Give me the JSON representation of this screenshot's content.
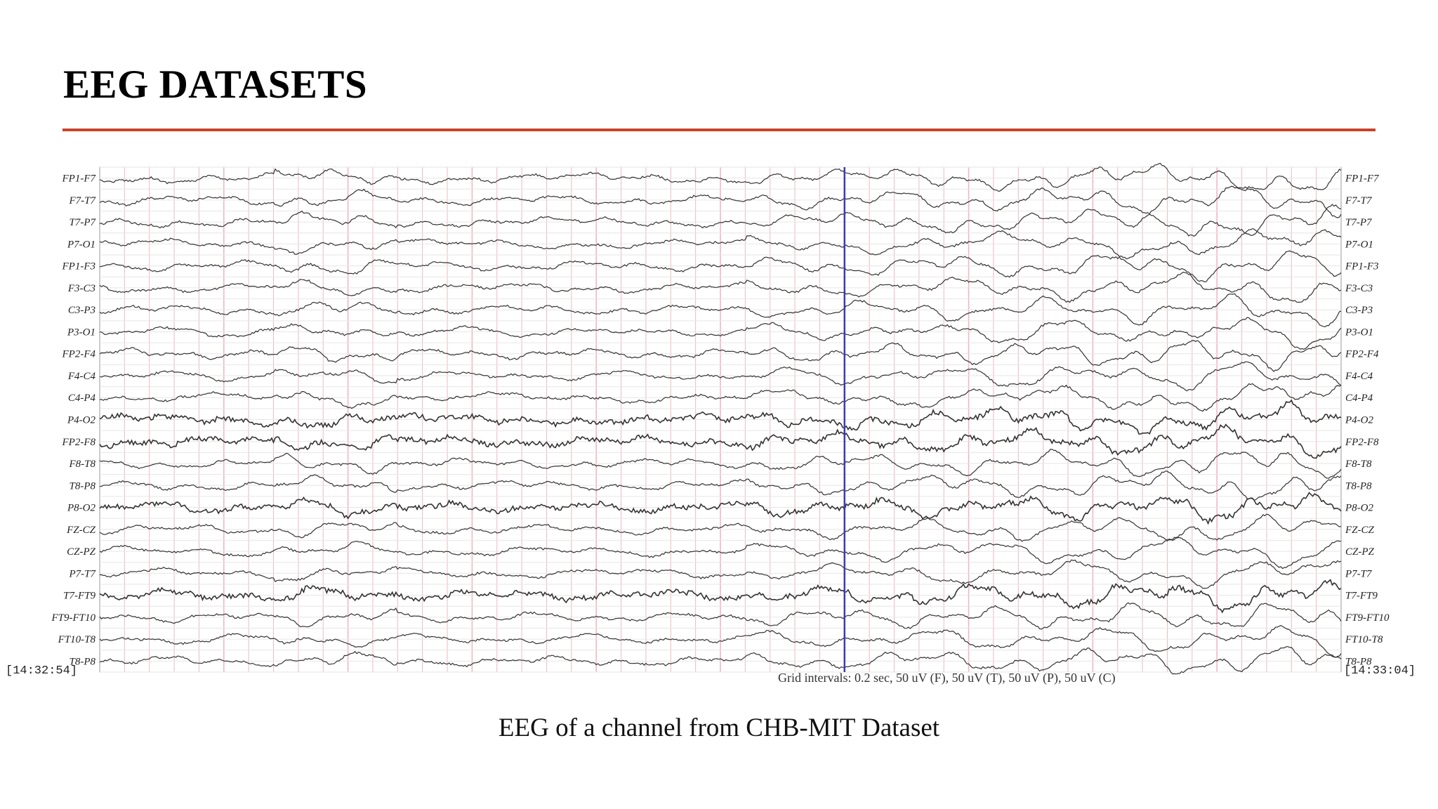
{
  "slide": {
    "title": "EEG DATASETS",
    "accent_color": "#c8442a",
    "caption": "EEG of a channel from CHB-MIT Dataset"
  },
  "eeg": {
    "channels": [
      "FP1-F7",
      "F7-T7",
      "T7-P7",
      "P7-O1",
      "FP1-F3",
      "F3-C3",
      "C3-P3",
      "P3-O1",
      "FP2-F4",
      "F4-C4",
      "C4-P4",
      "P4-O2",
      "FP2-F8",
      "F8-T8",
      "T8-P8",
      "P8-O2",
      "FZ-CZ",
      "CZ-PZ",
      "P7-T7",
      "T7-FT9",
      "FT9-FT10",
      "FT10-T8",
      "T8-P8"
    ],
    "start_time": "[14:32:54]",
    "end_time": "[14:33:04]",
    "grid_note": "Grid intervals: 0.2 sec, 50 uV (F), 50 uV (T), 50 uV (P), 50 uV (C)",
    "grid_color": "#f0b8c0",
    "trace_color": "#333333",
    "marker_color": "#3a3ab8"
  }
}
